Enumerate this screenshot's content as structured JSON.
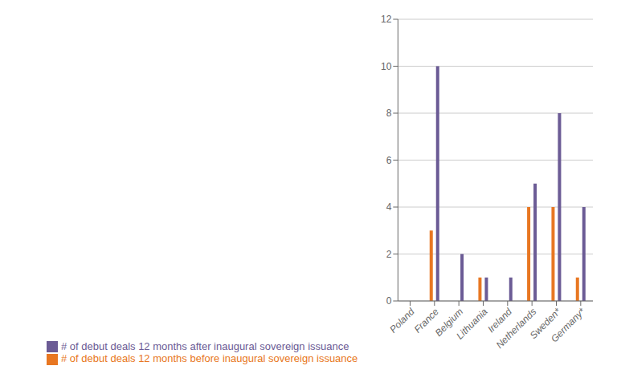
{
  "chart_data": {
    "type": "bar",
    "categories": [
      "Poland",
      "France",
      "Belgium",
      "Lithuania",
      "Ireland",
      "Netherlands",
      "Sweden*",
      "Germany*"
    ],
    "series": [
      {
        "name": "# of debut deals 12 months before inaugural sovereign issuance",
        "color": "#E87722",
        "values": [
          0,
          3,
          0,
          1,
          0,
          4,
          4,
          1
        ]
      },
      {
        "name": "# of debut deals 12 months after inaugural sovereign issuance",
        "color": "#6B5B95",
        "values": [
          0,
          10,
          2,
          1,
          1,
          5,
          8,
          4
        ]
      }
    ],
    "ylim": [
      0,
      12
    ],
    "yticks": [
      0,
      2,
      4,
      6,
      8,
      10,
      12
    ],
    "grid": true,
    "legend": "bottom left"
  }
}
